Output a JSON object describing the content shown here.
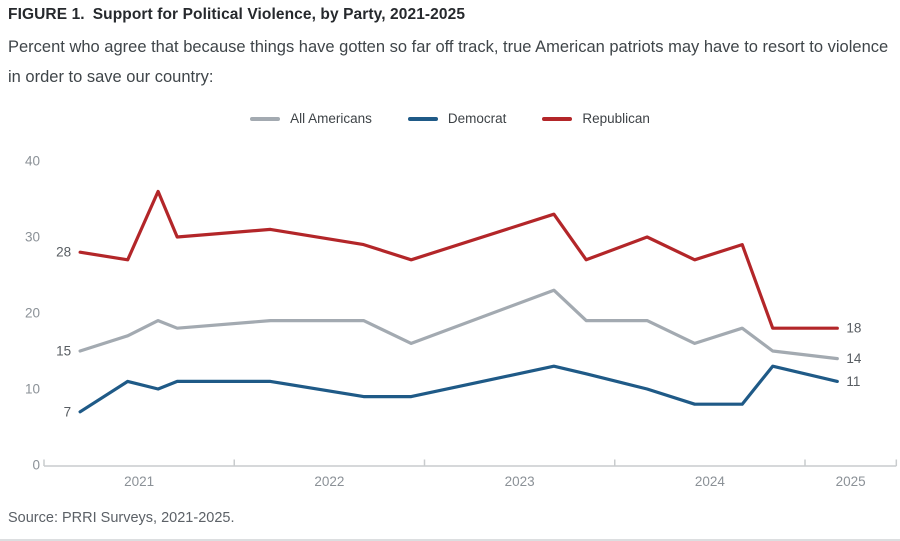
{
  "header": {
    "figure_label": "FIGURE 1.",
    "title": "Support for Political Violence, by Party, 2021-2025",
    "subtitle": "Percent who agree that because things have gotten so far off track, true American patriots may have to resort to violence in order to save our country:"
  },
  "legend": {
    "items": [
      {
        "label": "All Americans",
        "color": "#a3aab1"
      },
      {
        "label": "Democrat",
        "color": "#1f5a87"
      },
      {
        "label": "Republican",
        "color": "#b32629"
      }
    ]
  },
  "chart_data": {
    "type": "line",
    "x": [
      2021.19,
      2021.44,
      2021.6,
      2021.7,
      2022.19,
      2022.68,
      2022.93,
      2023.68,
      2023.85,
      2024.17,
      2024.42,
      2024.67,
      2024.83,
      2025.17
    ],
    "series": [
      {
        "name": "All Americans",
        "color": "#a3aab1",
        "values": [
          15,
          17,
          19,
          18,
          19,
          19,
          16,
          23,
          19,
          19,
          16,
          18,
          15,
          14
        ],
        "start_label": "15",
        "end_label": "14"
      },
      {
        "name": "Democrat",
        "color": "#1f5a87",
        "values": [
          7,
          11,
          10,
          11,
          11,
          9,
          9,
          13,
          12,
          10,
          8,
          8,
          13,
          11
        ],
        "start_label": "7",
        "end_label": "11"
      },
      {
        "name": "Republican",
        "color": "#b32629",
        "values": [
          28,
          27,
          36,
          30,
          31,
          29,
          27,
          33,
          27,
          30,
          27,
          29,
          18,
          18
        ],
        "start_label": "28",
        "end_label": "18"
      }
    ],
    "xlim": [
      2021.0,
      2025.48
    ],
    "ylim": [
      0,
      40
    ],
    "yticks": [
      0,
      10,
      20,
      30,
      40
    ],
    "xticks": [
      2021,
      2022,
      2023,
      2024,
      2025
    ],
    "grid": false,
    "legend_position": "top"
  },
  "source": "Source: PRRI Surveys, 2021-2025."
}
